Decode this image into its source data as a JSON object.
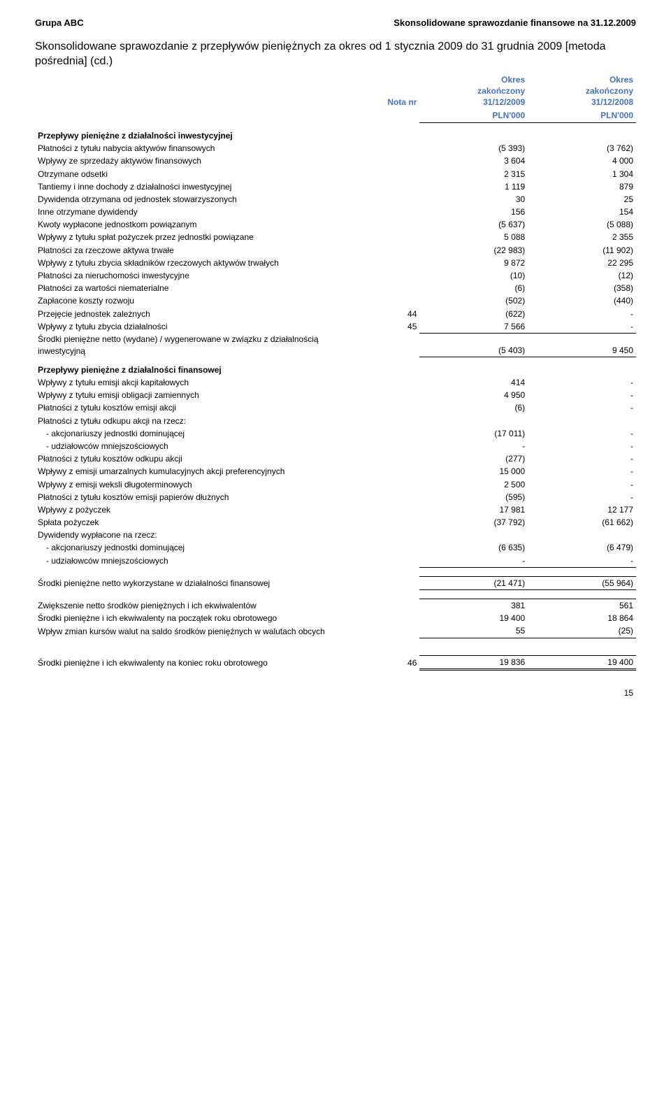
{
  "header": {
    "left": "Grupa ABC",
    "right": "Skonsolidowane sprawozdanie finansowe na 31.12.2009"
  },
  "title": "Skonsolidowane sprawozdanie z przepływów pieniężnych za okres od 1 stycznia 2009 do 31 grudnia 2009 [metoda pośrednia] (cd.)",
  "columns": {
    "nota": "Nota nr",
    "col1_line1": "Okres",
    "col1_line2": "zakończony",
    "col1_line3": "31/12/2009",
    "col2_line1": "Okres",
    "col2_line2": "zakończony",
    "col2_line3": "31/12/2008",
    "unit": "PLN'000"
  },
  "sections": {
    "invest_head": "Przepływy pieniężne z działalności inwestycyjnej",
    "invest_rows": [
      {
        "label": "Płatności z tytułu nabycia aktywów finansowych",
        "nota": "",
        "v1": "(5 393)",
        "v2": "(3 762)"
      },
      {
        "label": "Wpływy ze sprzedaży aktywów finansowych",
        "nota": "",
        "v1": "3 604",
        "v2": "4 000"
      },
      {
        "label": "Otrzymane odsetki",
        "nota": "",
        "v1": "2 315",
        "v2": "1 304"
      },
      {
        "label": "Tantiemy i inne dochody z działalności inwestycyjnej",
        "nota": "",
        "v1": "1 119",
        "v2": "879"
      },
      {
        "label": "Dywidenda otrzymana od jednostek stowarzyszonych",
        "nota": "",
        "v1": "30",
        "v2": "25"
      },
      {
        "label": "Inne otrzymane dywidendy",
        "nota": "",
        "v1": "156",
        "v2": "154"
      },
      {
        "label": "Kwoty wypłacone jednostkom powiązanym",
        "nota": "",
        "v1": "(5 637)",
        "v2": "(5 088)"
      },
      {
        "label": "Wpływy z tytułu spłat pożyczek przez jednostki powiązane",
        "nota": "",
        "v1": "5 088",
        "v2": "2 355"
      },
      {
        "label": "Płatności za rzeczowe aktywa trwałe",
        "nota": "",
        "v1": "(22 983)",
        "v2": "(11 902)"
      },
      {
        "label": "Wpływy z tytułu zbycia składników rzeczowych aktywów trwałych",
        "nota": "",
        "v1": "9 872",
        "v2": "22 295"
      },
      {
        "label": "Płatności za nieruchomości inwestycyjne",
        "nota": "",
        "v1": "(10)",
        "v2": "(12)"
      },
      {
        "label": "Płatności za wartości niematerialne",
        "nota": "",
        "v1": "(6)",
        "v2": "(358)"
      },
      {
        "label": "Zapłacone koszty rozwoju",
        "nota": "",
        "v1": "(502)",
        "v2": "(440)"
      },
      {
        "label": "Przejęcie jednostek zależnych",
        "nota": "44",
        "v1": "(622)",
        "v2": "-"
      },
      {
        "label": "Wpływy z tytułu zbycia działalności",
        "nota": "45",
        "v1": "7 566",
        "v2": "-"
      }
    ],
    "invest_total": {
      "label": "Środki pieniężne netto (wydane) / wygenerowane w związku z działalnością inwestycyjną",
      "v1": "(5 403)",
      "v2": "9 450"
    },
    "fin_head": "Przepływy pieniężne z działalności finansowej",
    "fin_rows": [
      {
        "label": "Wpływy z tytułu emisji akcji kapitałowych",
        "nota": "",
        "v1": "414",
        "v2": "-"
      },
      {
        "label": "Wpływy z tytułu emisji obligacji zamiennych",
        "nota": "",
        "v1": "4 950",
        "v2": "-"
      },
      {
        "label": "Płatności z tytułu kosztów emisji akcji",
        "nota": "",
        "v1": "(6)",
        "v2": "-"
      },
      {
        "label": "Płatności z tytułu odkupu akcji na rzecz:",
        "nota": "",
        "v1": "",
        "v2": ""
      },
      {
        "label": "- akcjonariuszy jednostki dominującej",
        "nota": "",
        "v1": "(17 011)",
        "v2": "-",
        "indent": true
      },
      {
        "label": "- udziałowców mniejszościowych",
        "nota": "",
        "v1": "-",
        "v2": "-",
        "indent": true
      },
      {
        "label": "Płatności z tytułu kosztów odkupu akcji",
        "nota": "",
        "v1": "(277)",
        "v2": "-"
      },
      {
        "label": "Wpływy z emisji umarzalnych kumulacyjnych akcji preferencyjnych",
        "nota": "",
        "v1": "15 000",
        "v2": "-"
      },
      {
        "label": "Wpływy z emisji weksli długoterminowych",
        "nota": "",
        "v1": "2 500",
        "v2": "-"
      },
      {
        "label": "Płatności z tytułu kosztów emisji papierów dłużnych",
        "nota": "",
        "v1": "(595)",
        "v2": "-"
      },
      {
        "label": "Wpływy z pożyczek",
        "nota": "",
        "v1": "17 981",
        "v2": "12 177"
      },
      {
        "label": "Spłata pożyczek",
        "nota": "",
        "v1": "(37 792)",
        "v2": "(61 662)"
      },
      {
        "label": "Dywidendy wypłacone na rzecz:",
        "nota": "",
        "v1": "",
        "v2": ""
      },
      {
        "label": "- akcjonariuszy jednostki dominującej",
        "nota": "",
        "v1": "(6 635)",
        "v2": "(6 479)",
        "indent": true
      },
      {
        "label": "- udziałowców mniejszościowych",
        "nota": "",
        "v1": "-",
        "v2": "-",
        "indent": true
      }
    ],
    "fin_total": {
      "label": "Środki pieniężne netto wykorzystane w działalności finansowej",
      "v1": "(21 471)",
      "v2": "(55 964)"
    },
    "extra_rows": [
      {
        "label": "Zwiększenie netto środków pieniężnych i ich ekwiwalentów",
        "v1": "381",
        "v2": "561"
      },
      {
        "label": "Środki pieniężne i ich ekwiwalenty na początek roku obrotowego",
        "v1": "19 400",
        "v2": "18 864"
      },
      {
        "label": "Wpływ zmian kursów walut na saldo środków pieniężnych w walutach obcych",
        "v1": "55",
        "v2": "(25)"
      }
    ],
    "grand": {
      "label": "Środki pieniężne i ich ekwiwalenty na koniec roku obrotowego",
      "nota": "46",
      "v1": "19 836",
      "v2": "19 400"
    }
  },
  "page_number": "15",
  "style": {
    "accent_color": "#4472c4",
    "text_color": "#000000",
    "bg_color": "#ffffff",
    "col_widths_pct": [
      55,
      9,
      18,
      18
    ]
  }
}
